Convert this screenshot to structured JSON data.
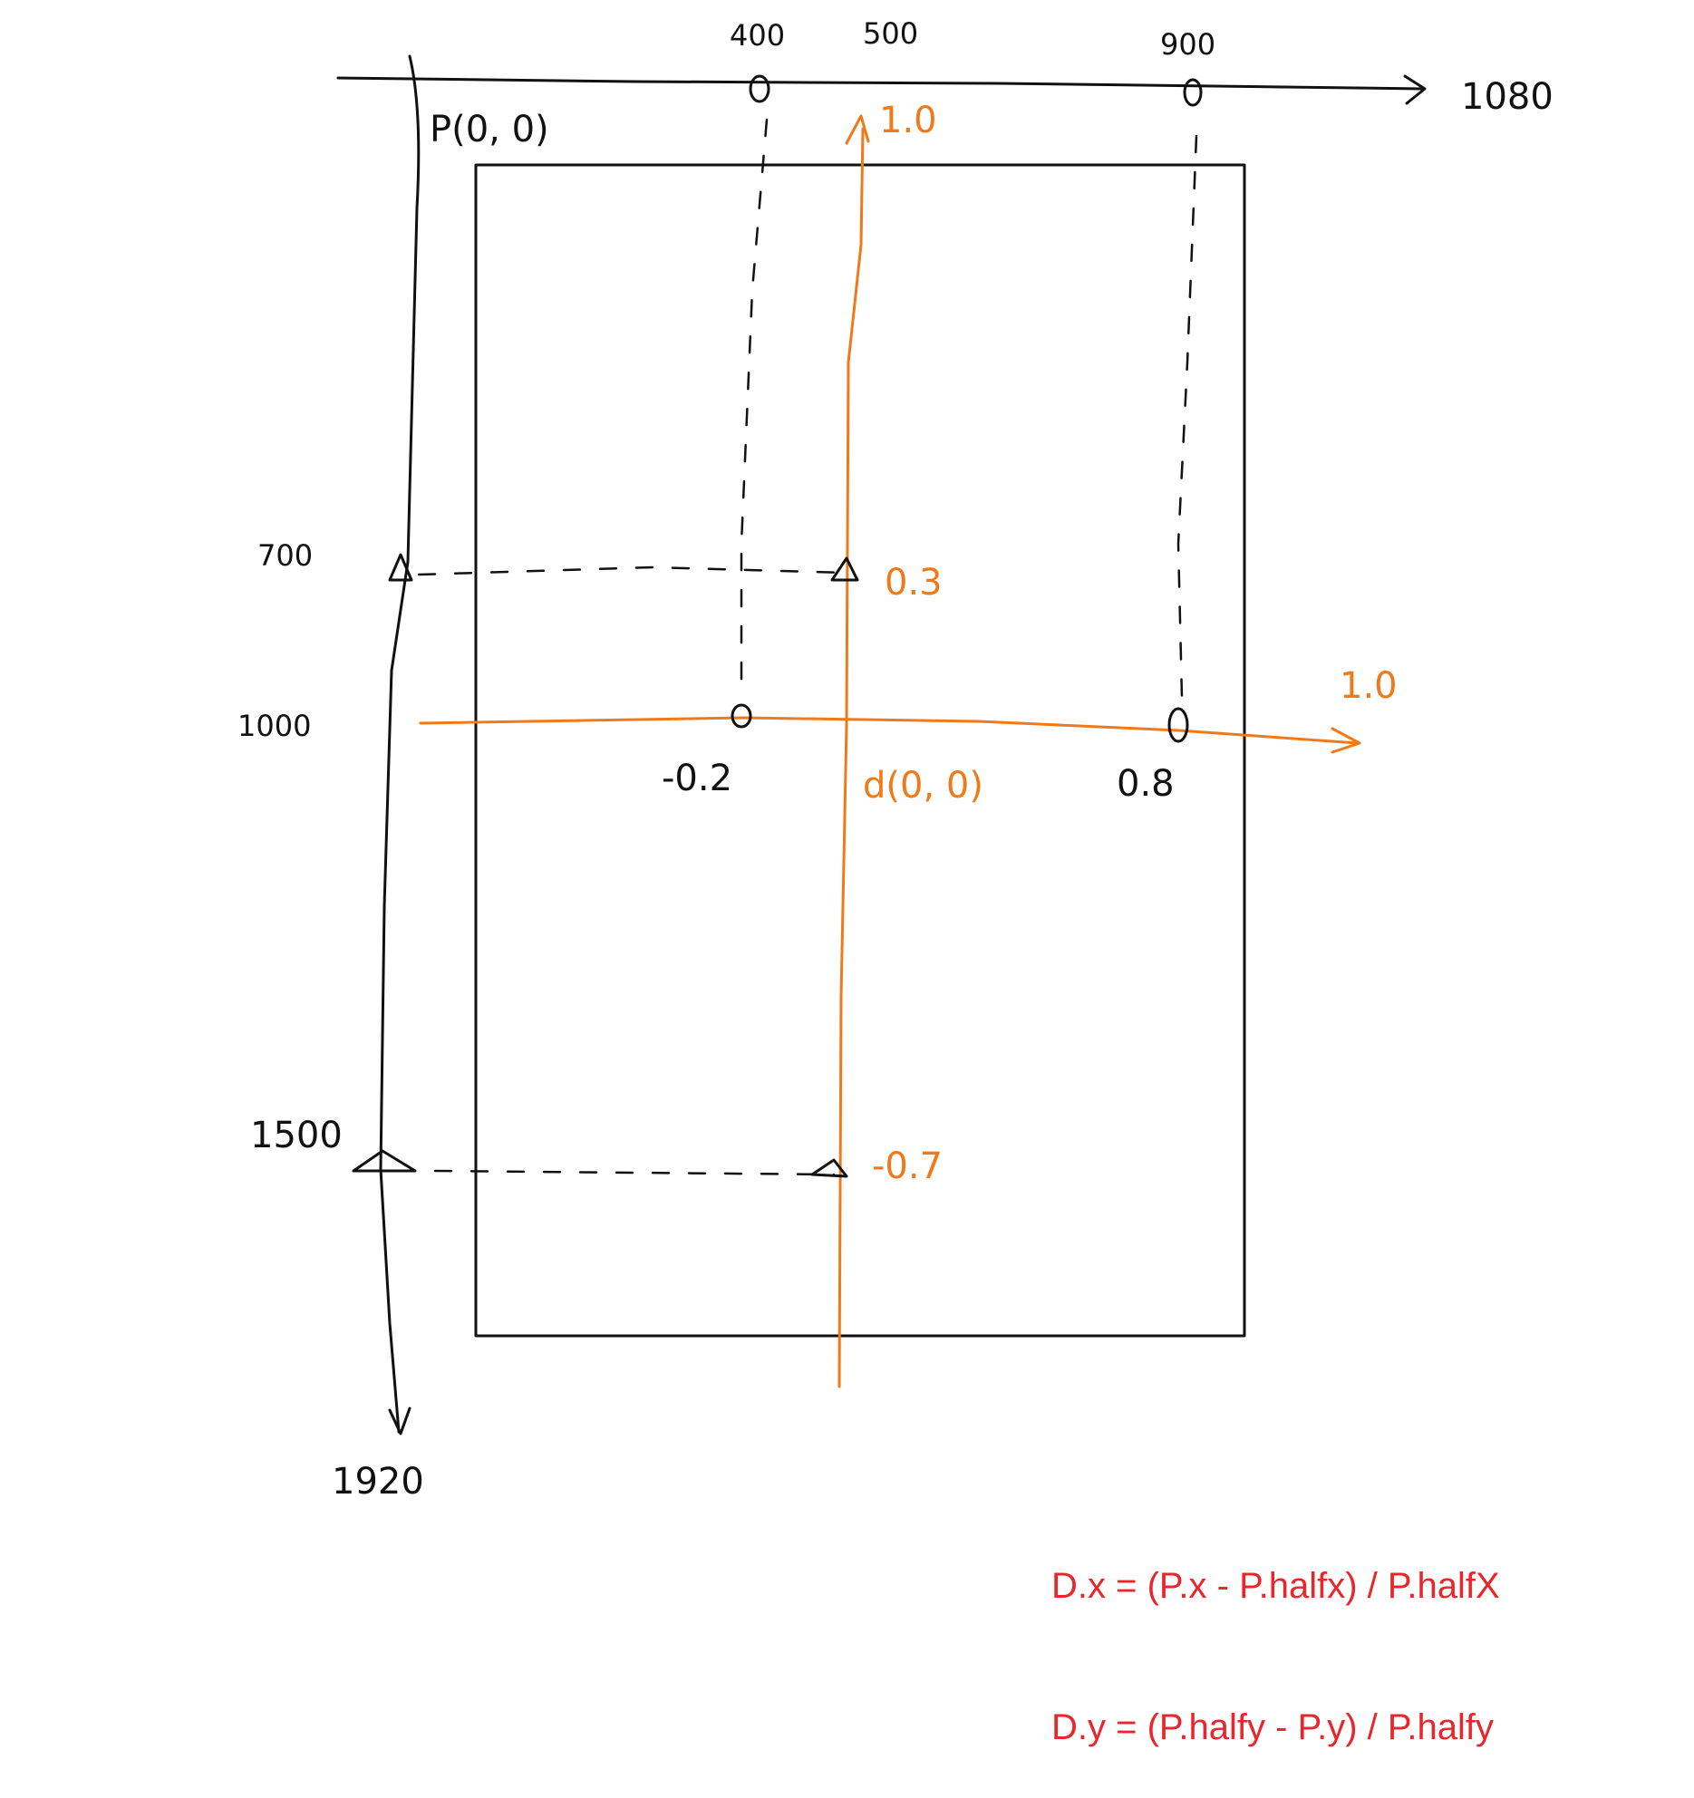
{
  "pixel_axes": {
    "origin_label": "P(0, 0)",
    "x_ticks": [
      "400",
      "500",
      "900"
    ],
    "x_max_label": "1080",
    "y_ticks": [
      "700",
      "1000",
      "1500"
    ],
    "y_max_label": "1920"
  },
  "ndc_axes": {
    "origin_label": "d(0, 0)",
    "x_max_label": "1.0",
    "y_max_label": "1.0",
    "x_point_labels": [
      "-0.2",
      "0.8"
    ],
    "y_point_labels": [
      "0.3",
      "-0.7"
    ]
  },
  "formula": {
    "line1": "D.x = (P.x - P.halfx) / P.halfX",
    "line2": "D.y = (P.halfy - P.y) / P.halfy"
  },
  "colors": {
    "ink": "#111111",
    "ndc": "#f0791a",
    "formula": "#e8262b"
  }
}
